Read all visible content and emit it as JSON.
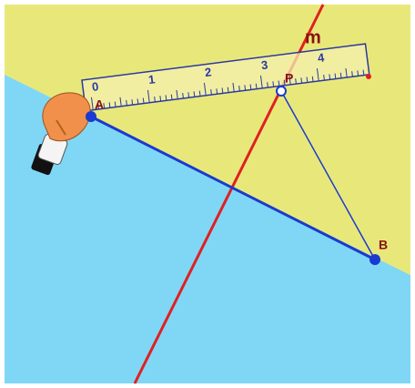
{
  "line_label": "m",
  "points": {
    "a": "A",
    "b": "B",
    "p": "P"
  },
  "ruler": {
    "numbers": [
      "0",
      "1",
      "2",
      "3",
      "4"
    ]
  }
}
